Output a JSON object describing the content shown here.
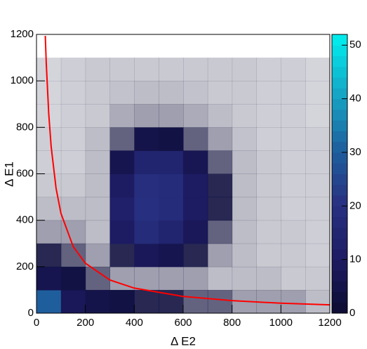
{
  "chart_data": {
    "type": "heatmap",
    "x_label": "Δ E2",
    "y_label": "Δ E1",
    "xlim": [
      0,
      1200
    ],
    "ylim": [
      0,
      1200
    ],
    "zlim": [
      0,
      52
    ],
    "xticks": [
      0,
      200,
      400,
      600,
      800,
      1000,
      1200
    ],
    "yticks": [
      0,
      200,
      400,
      600,
      800,
      1000,
      1200
    ],
    "zticks": [
      0,
      10,
      20,
      30,
      40,
      50
    ],
    "xbins": [
      0,
      100,
      200,
      300,
      400,
      500,
      600,
      700,
      800,
      900,
      1000,
      1100,
      1200
    ],
    "ybins": [
      0,
      100,
      200,
      300,
      400,
      500,
      600,
      700,
      800,
      900,
      1000,
      1100,
      1200
    ],
    "z": [
      [
        30,
        8,
        5,
        4,
        3,
        3,
        2,
        2,
        1,
        1,
        1,
        0.5
      ],
      [
        6,
        4,
        2,
        1,
        1,
        1,
        1,
        0.5,
        0.5,
        0.5,
        0.3,
        0.3
      ],
      [
        3,
        2,
        1,
        3,
        8,
        6,
        3,
        1,
        0.5,
        0.3,
        0.3,
        0.2
      ],
      [
        1,
        1,
        0.5,
        10,
        18,
        14,
        8,
        2,
        0.5,
        0.3,
        0.3,
        0.2
      ],
      [
        0.5,
        0.5,
        0.5,
        12,
        20,
        18,
        10,
        3,
        0.5,
        0.3,
        0.2,
        0.2
      ],
      [
        0.3,
        0.3,
        0.5,
        10,
        19,
        18,
        10,
        3,
        0.5,
        0.3,
        0.2,
        0.2
      ],
      [
        0.2,
        0.2,
        0.5,
        6,
        14,
        14,
        7,
        2,
        0.5,
        0.3,
        0.2,
        0.2
      ],
      [
        0.2,
        0.2,
        0.5,
        2,
        5,
        4,
        2,
        1,
        0.4,
        0.2,
        0.2,
        0.2
      ],
      [
        0.1,
        0.2,
        0.3,
        0.8,
        1,
        1,
        0.8,
        0.5,
        0.3,
        0.2,
        0.2,
        0.1
      ],
      [
        0.1,
        0.2,
        0.3,
        0.4,
        0.5,
        0.5,
        0.4,
        0.3,
        0.3,
        0.2,
        0.2,
        0.1
      ],
      [
        0.1,
        0.2,
        0.3,
        0.3,
        0.3,
        0.3,
        0.3,
        0.3,
        0.3,
        0.2,
        0.2,
        0.1
      ],
      [
        0,
        0,
        0,
        0,
        0,
        0,
        0,
        0,
        0,
        0,
        0,
        0
      ]
    ],
    "curve": {
      "color": "#ff0000",
      "x": [
        36,
        40,
        50,
        60,
        80,
        100,
        150,
        200,
        300,
        400,
        600,
        800,
        1000,
        1200
      ],
      "values": [
        1194,
        1075,
        860,
        717,
        538,
        430,
        287,
        215,
        143,
        108,
        72,
        54,
        43,
        36
      ]
    }
  }
}
